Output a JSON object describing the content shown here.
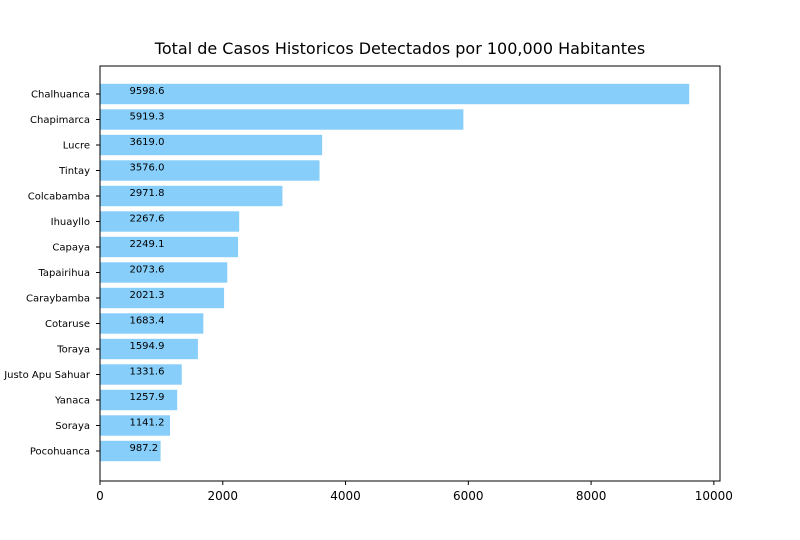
{
  "chart_data": {
    "type": "bar",
    "orientation": "horizontal",
    "title": "Total de Casos Historicos Detectados por 100,000 Habitantes",
    "xlabel": "",
    "ylabel": "",
    "categories": [
      "Chalhuanca",
      "Chapimarca",
      "Lucre",
      "Tintay",
      "Colcabamba",
      "Ihuayllo",
      "Capaya",
      "Tapairihua",
      "Caraybamba",
      "Cotaruse",
      "Toraya",
      "Justo Apu Sahuar",
      "Yanaca",
      "Soraya",
      "Pocohuanca"
    ],
    "values": [
      9598.6,
      5919.3,
      3619.0,
      3576.0,
      2971.8,
      2267.6,
      2249.1,
      2073.6,
      2021.3,
      1683.4,
      1594.9,
      1331.6,
      1257.9,
      1141.2,
      987.2
    ],
    "value_labels": [
      "9598.6",
      "5919.3",
      "3619.0",
      "3576.0",
      "2971.8",
      "2267.6",
      "2249.1",
      "2073.6",
      "2021.3",
      "1683.4",
      "1594.9",
      "1331.6",
      "1257.9",
      "1141.2",
      "987.2"
    ],
    "xlim": [
      0,
      10100
    ],
    "xticks": [
      0,
      2000,
      4000,
      6000,
      8000,
      10000
    ],
    "xtick_labels": [
      "0",
      "2000",
      "4000",
      "6000",
      "8000",
      "10000"
    ],
    "value_label_anchor": 480,
    "bar_color": "#87cefa",
    "grid": false,
    "legend": "none"
  }
}
